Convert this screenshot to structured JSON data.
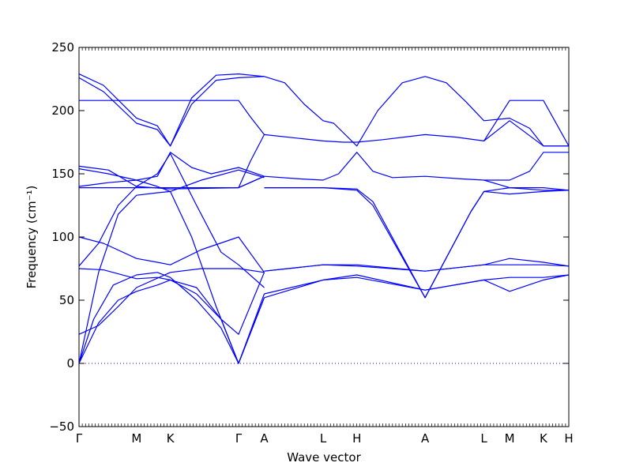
{
  "chart_data": {
    "type": "line",
    "title": "",
    "xlabel": "Wave vector",
    "ylabel": "Frequency (cm⁻¹)",
    "ylim": [
      -50,
      250
    ],
    "yticks": [
      -50,
      0,
      50,
      100,
      150,
      200,
      250
    ],
    "x_ticks": [
      {
        "label": "Γ",
        "pos": 0.0
      },
      {
        "label": "M",
        "pos": 0.1175
      },
      {
        "label": "K",
        "pos": 0.1865
      },
      {
        "label": "Γ",
        "pos": 0.3258
      },
      {
        "label": "A",
        "pos": 0.3782
      },
      {
        "label": "L",
        "pos": 0.4984
      },
      {
        "label": "H",
        "pos": 0.5673
      },
      {
        "label": "A",
        "pos": 0.7066
      },
      {
        "label": "L",
        "pos": 0.8268
      },
      {
        "label": "M",
        "pos": 0.8792
      },
      {
        "label": "K",
        "pos": 0.9482
      },
      {
        "label": "H",
        "pos": 1.0
      }
    ],
    "xlim": [
      0,
      1
    ],
    "zero_line": 0,
    "line_color": "#0000ff",
    "zero_line_color": "#0000ff",
    "series": [
      {
        "values": [
          [
            0,
            0
          ],
          [
            0.04,
            72
          ],
          [
            0.08,
            118
          ],
          [
            0.1175,
            133
          ],
          [
            0.16,
            135
          ],
          [
            0.1865,
            136
          ],
          [
            0.23,
            100
          ],
          [
            0.28,
            45
          ],
          [
            0.3258,
            0
          ],
          [
            0.3782,
            55
          ]
        ]
      },
      {
        "values": [
          [
            0,
            0
          ],
          [
            0.03,
            35
          ],
          [
            0.07,
            62
          ],
          [
            0.1175,
            70
          ],
          [
            0.16,
            72
          ],
          [
            0.1865,
            68
          ],
          [
            0.24,
            50
          ],
          [
            0.29,
            28
          ],
          [
            0.3258,
            0
          ],
          [
            0.3782,
            52
          ]
        ]
      },
      {
        "values": [
          [
            0,
            0
          ],
          [
            0.04,
            32
          ],
          [
            0.08,
            50
          ],
          [
            0.1175,
            57
          ],
          [
            0.16,
            62
          ],
          [
            0.1865,
            66
          ],
          [
            0.24,
            55
          ],
          [
            0.29,
            35
          ],
          [
            0.3258,
            0
          ],
          [
            0.3782,
            52
          ]
        ]
      },
      {
        "values": [
          [
            0,
            23
          ],
          [
            0.04,
            30
          ],
          [
            0.08,
            45
          ],
          [
            0.1175,
            60
          ],
          [
            0.1865,
            72
          ],
          [
            0.25,
            75
          ],
          [
            0.3258,
            75
          ],
          [
            0.3782,
            72
          ]
        ]
      },
      {
        "values": [
          [
            0,
            75
          ],
          [
            0.05,
            74
          ],
          [
            0.1175,
            67
          ],
          [
            0.16,
            68
          ],
          [
            0.1865,
            66
          ],
          [
            0.24,
            60
          ],
          [
            0.29,
            35
          ],
          [
            0.3258,
            23
          ],
          [
            0.3782,
            72
          ]
        ]
      },
      {
        "values": [
          [
            0,
            77
          ],
          [
            0.04,
            95
          ],
          [
            0.08,
            125
          ],
          [
            0.1175,
            140
          ],
          [
            0.16,
            150
          ],
          [
            0.1865,
            166
          ],
          [
            0.24,
            125
          ],
          [
            0.29,
            88
          ],
          [
            0.3258,
            78
          ],
          [
            0.3782,
            60
          ]
        ]
      },
      {
        "values": [
          [
            0,
            100
          ],
          [
            0.05,
            95
          ],
          [
            0.1175,
            83
          ],
          [
            0.16,
            80
          ],
          [
            0.1865,
            78
          ],
          [
            0.25,
            90
          ],
          [
            0.3258,
            100
          ],
          [
            0.3782,
            72
          ]
        ]
      },
      {
        "values": [
          [
            0,
            139
          ],
          [
            0.1175,
            139
          ],
          [
            0.1865,
            139
          ],
          [
            0.3258,
            139
          ],
          [
            0.3782,
            148
          ]
        ]
      },
      {
        "values": [
          [
            0,
            140
          ],
          [
            0.06,
            143
          ],
          [
            0.1175,
            145
          ],
          [
            0.16,
            148
          ],
          [
            0.1865,
            167
          ],
          [
            0.23,
            155
          ],
          [
            0.27,
            150
          ],
          [
            0.3258,
            155
          ],
          [
            0.3782,
            148
          ]
        ]
      },
      {
        "values": [
          [
            0,
            154
          ],
          [
            0.06,
            150
          ],
          [
            0.1175,
            145
          ],
          [
            0.16,
            140
          ],
          [
            0.1865,
            136
          ],
          [
            0.25,
            145
          ],
          [
            0.3258,
            153
          ],
          [
            0.3782,
            147
          ]
        ]
      },
      {
        "values": [
          [
            0,
            156
          ],
          [
            0.06,
            153
          ],
          [
            0.1175,
            140
          ],
          [
            0.1865,
            138
          ],
          [
            0.3258,
            139
          ],
          [
            0.3782,
            148
          ]
        ]
      },
      {
        "values": [
          [
            0,
            208
          ],
          [
            0.1175,
            208
          ],
          [
            0.1865,
            208
          ],
          [
            0.3258,
            208
          ],
          [
            0.35,
            195
          ],
          [
            0.3782,
            181
          ]
        ]
      },
      {
        "values": [
          [
            0,
            226
          ],
          [
            0.05,
            215
          ],
          [
            0.1175,
            190
          ],
          [
            0.16,
            185
          ],
          [
            0.1865,
            172
          ],
          [
            0.23,
            205
          ],
          [
            0.28,
            224
          ],
          [
            0.3258,
            226
          ],
          [
            0.3782,
            227
          ]
        ]
      },
      {
        "values": [
          [
            0,
            229
          ],
          [
            0.05,
            220
          ],
          [
            0.1175,
            194
          ],
          [
            0.16,
            188
          ],
          [
            0.1865,
            172
          ],
          [
            0.23,
            210
          ],
          [
            0.28,
            228
          ],
          [
            0.3258,
            229
          ],
          [
            0.3782,
            227
          ]
        ]
      },
      {
        "values": [
          [
            0.3258,
            139
          ],
          [
            0.35,
            160
          ],
          [
            0.3782,
            181
          ]
        ]
      },
      {
        "values": [
          [
            0.3782,
            227
          ],
          [
            0.42,
            222
          ],
          [
            0.46,
            205
          ],
          [
            0.4984,
            192
          ],
          [
            0.52,
            190
          ],
          [
            0.5673,
            172
          ],
          [
            0.61,
            200
          ],
          [
            0.66,
            222
          ],
          [
            0.7066,
            227
          ],
          [
            0.75,
            222
          ],
          [
            0.79,
            207
          ],
          [
            0.8268,
            192
          ],
          [
            0.8792,
            194
          ],
          [
            0.92,
            186
          ],
          [
            0.9482,
            172
          ],
          [
            1.0,
            172
          ]
        ]
      },
      {
        "values": [
          [
            0.3782,
            181
          ],
          [
            0.45,
            178
          ],
          [
            0.4984,
            176
          ],
          [
            0.54,
            175
          ],
          [
            0.5673,
            175
          ],
          [
            0.62,
            177
          ],
          [
            0.7066,
            181
          ],
          [
            0.77,
            179
          ],
          [
            0.8268,
            176
          ],
          [
            0.8792,
            192
          ],
          [
            0.9482,
            172
          ],
          [
            1.0,
            172
          ]
        ]
      },
      {
        "values": [
          [
            0.8268,
            176
          ],
          [
            0.8792,
            208
          ],
          [
            0.9482,
            208
          ],
          [
            1.0,
            172
          ]
        ]
      },
      {
        "values": [
          [
            0.3782,
            148
          ],
          [
            0.45,
            146
          ],
          [
            0.4984,
            145
          ],
          [
            0.53,
            150
          ],
          [
            0.5673,
            167
          ],
          [
            0.6,
            152
          ],
          [
            0.64,
            147
          ],
          [
            0.7066,
            148
          ],
          [
            0.78,
            146
          ],
          [
            0.8268,
            145
          ],
          [
            0.8792,
            145
          ],
          [
            0.92,
            152
          ],
          [
            0.9482,
            167
          ],
          [
            1.0,
            167
          ]
        ]
      },
      {
        "values": [
          [
            0.3782,
            139
          ],
          [
            0.4984,
            139
          ],
          [
            0.5673,
            138
          ],
          [
            0.6,
            128
          ],
          [
            0.7066,
            52
          ],
          [
            0.8,
            120
          ],
          [
            0.8268,
            136
          ],
          [
            0.8792,
            139
          ],
          [
            0.9482,
            139
          ],
          [
            1.0,
            137
          ]
        ]
      },
      {
        "values": [
          [
            0.3782,
            139
          ],
          [
            0.4984,
            139
          ],
          [
            0.5673,
            137
          ],
          [
            0.6,
            125
          ],
          [
            0.7066,
            52
          ],
          [
            0.8,
            120
          ],
          [
            0.8268,
            136
          ],
          [
            0.8792,
            134
          ],
          [
            0.9482,
            136
          ],
          [
            1.0,
            137
          ]
        ]
      },
      {
        "values": [
          [
            0.8268,
            145
          ],
          [
            0.8792,
            139
          ],
          [
            0.9482,
            137
          ],
          [
            1.0,
            137
          ]
        ]
      },
      {
        "values": [
          [
            0.3782,
            73
          ],
          [
            0.4984,
            78
          ],
          [
            0.5673,
            78
          ],
          [
            0.7066,
            73
          ],
          [
            0.8268,
            78
          ],
          [
            0.8792,
            83
          ],
          [
            0.9482,
            80
          ],
          [
            1.0,
            77
          ]
        ]
      },
      {
        "values": [
          [
            0.3782,
            73
          ],
          [
            0.4984,
            78
          ],
          [
            0.5673,
            77
          ],
          [
            0.7066,
            73
          ],
          [
            0.8268,
            78
          ],
          [
            0.8792,
            78
          ],
          [
            0.9482,
            78
          ],
          [
            1.0,
            77
          ]
        ]
      },
      {
        "values": [
          [
            0.3782,
            52
          ],
          [
            0.4984,
            66
          ],
          [
            0.5673,
            70
          ],
          [
            0.7066,
            58
          ],
          [
            0.8268,
            66
          ],
          [
            0.8792,
            68
          ],
          [
            0.9482,
            68
          ],
          [
            1.0,
            70
          ]
        ]
      },
      {
        "values": [
          [
            0.3782,
            55
          ],
          [
            0.4984,
            66
          ],
          [
            0.5673,
            68
          ],
          [
            0.7066,
            58
          ],
          [
            0.8268,
            66
          ],
          [
            0.8792,
            57
          ],
          [
            0.9482,
            66
          ],
          [
            1.0,
            70
          ]
        ]
      }
    ]
  }
}
